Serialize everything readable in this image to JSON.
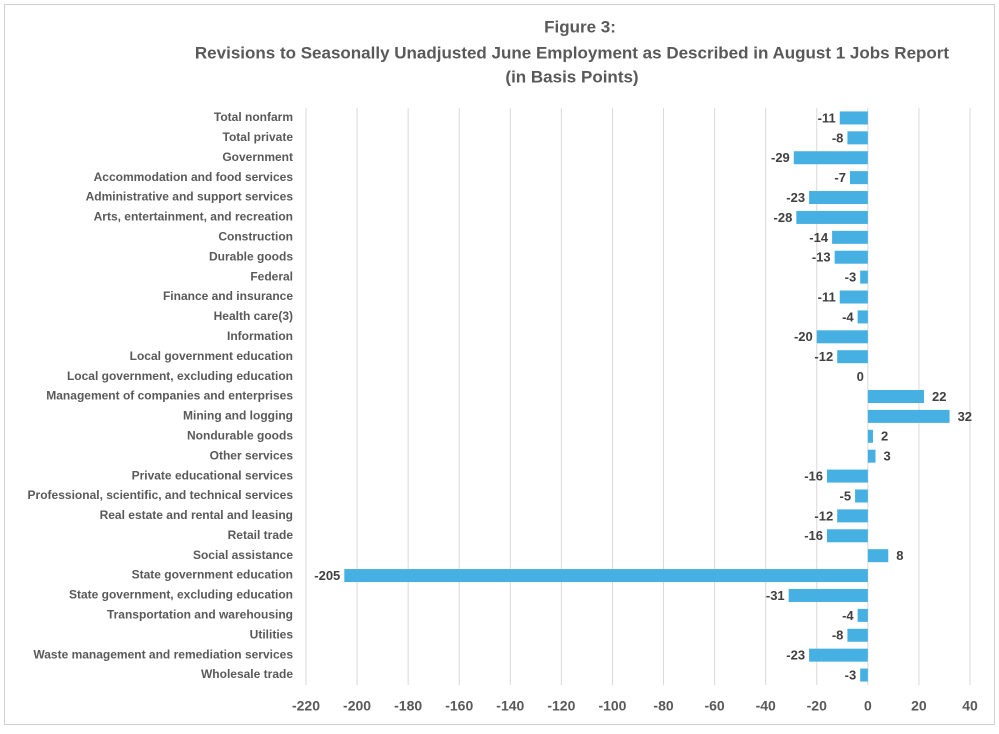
{
  "chart_data": {
    "type": "hbar",
    "title": [
      "Figure 3:",
      "Revisions to Seasonally Unadjusted June Employment as Described in August 1 Jobs Report",
      "(in Basis Points)"
    ],
    "categories": [
      "Total nonfarm",
      "Total private",
      "Government",
      "Accommodation and food services",
      "Administrative and support services",
      "Arts, entertainment, and recreation",
      "Construction",
      "Durable goods",
      "Federal",
      "Finance and insurance",
      "Health care(3)",
      "Information",
      "Local government education",
      "Local government, excluding education",
      "Management of companies and enterprises",
      "Mining and logging",
      "Nondurable goods",
      "Other services",
      "Private educational services",
      "Professional, scientific, and technical services",
      "Real estate and rental and leasing",
      "Retail trade",
      "Social assistance",
      "State government education",
      "State government, excluding education",
      "Transportation and warehousing",
      "Utilities",
      "Waste management and remediation services",
      "Wholesale trade"
    ],
    "values": [
      -11,
      -8,
      -29,
      -7,
      -23,
      -28,
      -14,
      -13,
      -3,
      -11,
      -4,
      -20,
      -12,
      0,
      22,
      32,
      2,
      3,
      -16,
      -5,
      -12,
      -16,
      8,
      -205,
      -31,
      -4,
      -8,
      -23,
      -3
    ],
    "color": "#45b0e1",
    "xlim": [
      -220,
      40
    ],
    "xticks": [
      -220,
      -200,
      -180,
      -160,
      -140,
      -120,
      -100,
      -80,
      -60,
      -40,
      -20,
      0,
      20,
      40
    ],
    "grid": true
  }
}
